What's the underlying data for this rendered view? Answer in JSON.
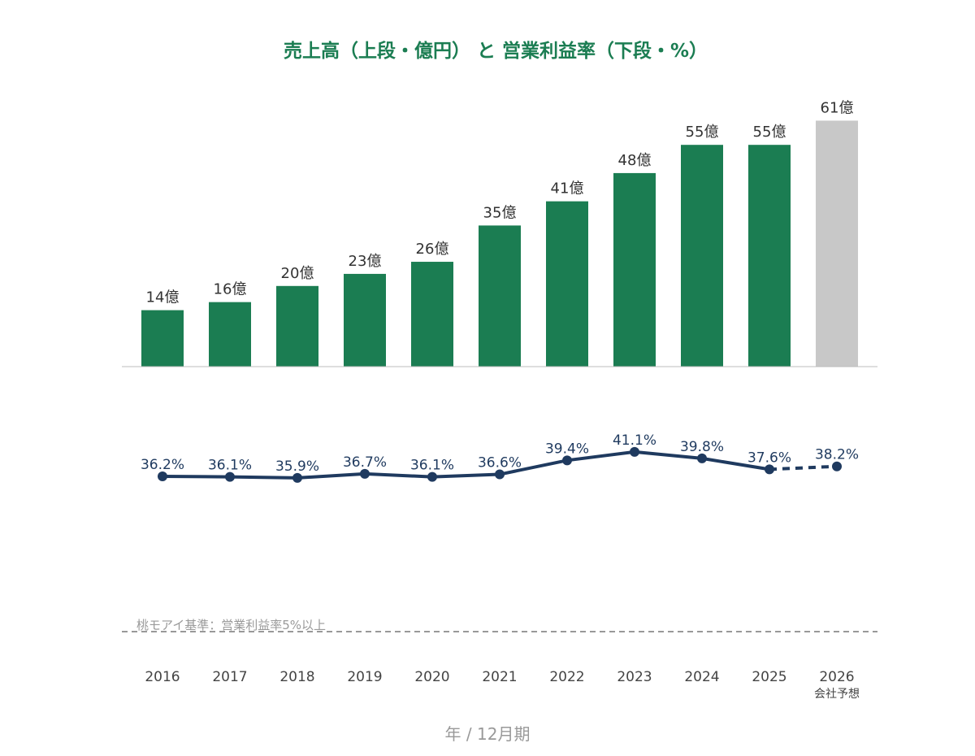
{
  "chart_data": {
    "type": "bar",
    "title": "売上高（上段・億円） と 営業利益率（下段・%）",
    "xlabel": "年 / 12月期",
    "categories": [
      "2016",
      "2017",
      "2018",
      "2019",
      "2020",
      "2021",
      "2022",
      "2023",
      "2024",
      "2025",
      "2026"
    ],
    "category_sublabels": [
      "",
      "",
      "",
      "",
      "",
      "",
      "",
      "",
      "",
      "",
      "会社予想"
    ],
    "series": [
      {
        "unit": "億円",
        "values": [
          14,
          16,
          20,
          23,
          26,
          35,
          41,
          48,
          55,
          55,
          61
        ],
        "labels": [
          "14億",
          "16億",
          "20億",
          "23億",
          "26億",
          "35億",
          "41億",
          "48億",
          "55億",
          "55億",
          "61億"
        ],
        "forecast_from_index": 10
      },
      {
        "type": "line",
        "unit": "%",
        "values": [
          36.2,
          36.1,
          35.9,
          36.7,
          36.1,
          36.6,
          39.4,
          41.1,
          39.8,
          37.6,
          38.2
        ],
        "labels": [
          "36.2%",
          "36.1%",
          "35.9%",
          "36.7%",
          "36.1%",
          "36.6%",
          "39.4%",
          "41.1%",
          "39.8%",
          "37.6%",
          "38.2%"
        ],
        "forecast_from_index": 10
      }
    ],
    "reference_line": {
      "label": "桃モアイ基準：営業利益率5%以上",
      "value": 5,
      "style": "dashed"
    },
    "grid": false,
    "legend": "none",
    "colors": {
      "bar": "#1b7d52",
      "bar_forecast": "#c8c8c8",
      "line": "#1f3a5f",
      "title": "#1b7d52",
      "reference": "#999999"
    }
  }
}
